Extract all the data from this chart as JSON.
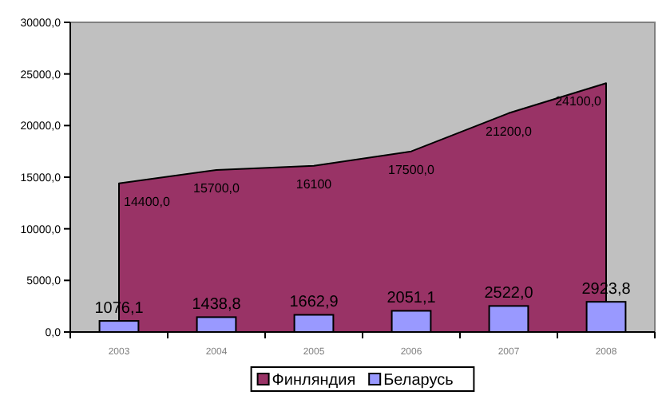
{
  "chart_data": {
    "type": "bar",
    "categories": [
      "2003",
      "2004",
      "2005",
      "2006",
      "2007",
      "2008"
    ],
    "series": [
      {
        "name": "Финляндия",
        "type": "area",
        "color": "#993366",
        "values": [
          14400,
          15700,
          16100,
          17500,
          21200,
          24100
        ],
        "value_labels": [
          "14400,0",
          "15700,0",
          "16100",
          "17500,0",
          "21200,0",
          "24100,0"
        ]
      },
      {
        "name": "Беларусь",
        "color": "#9999ff",
        "values": [
          1076.1,
          1438.8,
          1662.9,
          2051.1,
          2522.0,
          2923.8
        ],
        "value_labels": [
          "1076,1",
          "1438,8",
          "1662,9",
          "2051,1",
          "2522,0",
          "2923,8"
        ]
      }
    ],
    "ylim": [
      0,
      30000
    ],
    "yticks": [
      {
        "value": 0,
        "label": "0,0"
      },
      {
        "value": 5000,
        "label": "5000,0"
      },
      {
        "value": 10000,
        "label": "10000,0"
      },
      {
        "value": 15000,
        "label": "15000,0"
      },
      {
        "value": 20000,
        "label": "20000,0"
      },
      {
        "value": 25000,
        "label": "25000,0"
      },
      {
        "value": 30000,
        "label": "30000,0"
      }
    ],
    "grid": false,
    "legend": "bottom"
  }
}
